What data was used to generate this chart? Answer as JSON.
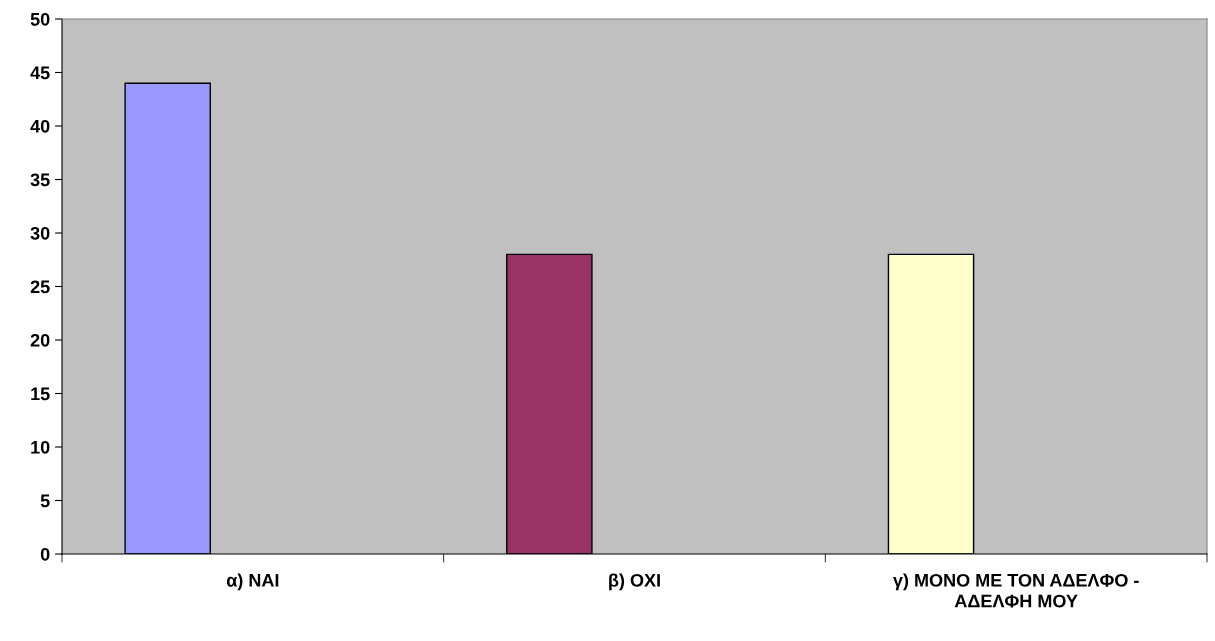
{
  "chart_data": {
    "type": "bar",
    "categories": [
      "α) ΝΑΙ",
      "β) ΟΧΙ",
      "γ) ΜΟΝΟ ΜΕ ΤΟΝ ΑΔΕΛΦΟ -\nΑΔΕΛΦΗ ΜΟΥ"
    ],
    "values": [
      44,
      28,
      28
    ],
    "colors": [
      "#9999ff",
      "#993366",
      "#ffffcc"
    ],
    "ylim": [
      0,
      50
    ],
    "yticks": [
      0,
      5,
      10,
      15,
      20,
      25,
      30,
      35,
      40,
      45,
      50
    ],
    "grid": false,
    "legend": false
  }
}
